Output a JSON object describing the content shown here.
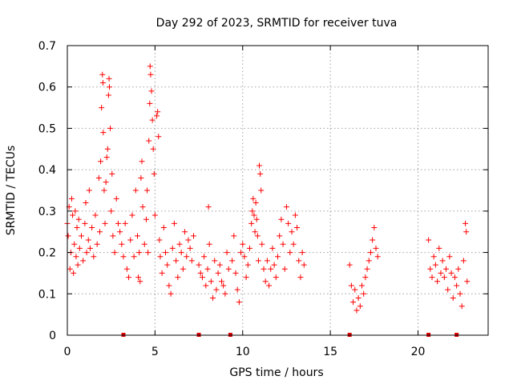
{
  "chart_data": {
    "type": "scatter",
    "title": "Day 292 of 2023, SRMTID for receiver tuva",
    "xlabel": "GPS time / hours",
    "ylabel": "SRMTID / TECUs",
    "xlim": [
      0,
      24
    ],
    "ylim": [
      0,
      0.7
    ],
    "xticks": [
      "0",
      "5",
      "10",
      "15",
      "20"
    ],
    "yticks": [
      "0",
      "0.1",
      "0.2",
      "0.3",
      "0.4",
      "0.5",
      "0.6",
      "0.7"
    ],
    "grid": true,
    "marker": "plus",
    "color": "#ff0000",
    "data_gap_markers_x": [
      3.2,
      7.5,
      9.3,
      16.1,
      20.6,
      22.2
    ],
    "series": [
      {
        "name": "SRMTID",
        "points": [
          [
            0.0,
            0.27
          ],
          [
            0.05,
            0.24
          ],
          [
            0.1,
            0.31
          ],
          [
            0.15,
            0.16
          ],
          [
            0.2,
            0.2
          ],
          [
            0.25,
            0.33
          ],
          [
            0.3,
            0.29
          ],
          [
            0.35,
            0.15
          ],
          [
            0.4,
            0.22
          ],
          [
            0.45,
            0.3
          ],
          [
            0.5,
            0.19
          ],
          [
            0.55,
            0.26
          ],
          [
            0.6,
            0.17
          ],
          [
            0.65,
            0.28
          ],
          [
            0.7,
            0.21
          ],
          [
            0.8,
            0.24
          ],
          [
            0.9,
            0.18
          ],
          [
            1.0,
            0.27
          ],
          [
            1.05,
            0.32
          ],
          [
            1.1,
            0.2
          ],
          [
            1.2,
            0.23
          ],
          [
            1.25,
            0.35
          ],
          [
            1.3,
            0.21
          ],
          [
            1.4,
            0.26
          ],
          [
            1.5,
            0.19
          ],
          [
            1.6,
            0.29
          ],
          [
            1.7,
            0.22
          ],
          [
            1.8,
            0.38
          ],
          [
            1.85,
            0.25
          ],
          [
            1.9,
            0.42
          ],
          [
            1.95,
            0.55
          ],
          [
            2.0,
            0.63
          ],
          [
            2.03,
            0.61
          ],
          [
            2.05,
            0.49
          ],
          [
            2.1,
            0.35
          ],
          [
            2.15,
            0.27
          ],
          [
            2.2,
            0.37
          ],
          [
            2.25,
            0.43
          ],
          [
            2.3,
            0.45
          ],
          [
            2.35,
            0.58
          ],
          [
            2.38,
            0.62
          ],
          [
            2.4,
            0.6
          ],
          [
            2.45,
            0.5
          ],
          [
            2.5,
            0.3
          ],
          [
            2.55,
            0.39
          ],
          [
            2.6,
            0.24
          ],
          [
            2.7,
            0.2
          ],
          [
            2.8,
            0.33
          ],
          [
            2.9,
            0.27
          ],
          [
            3.0,
            0.25
          ],
          [
            3.1,
            0.22
          ],
          [
            3.2,
            0.19
          ],
          [
            3.3,
            0.27
          ],
          [
            3.4,
            0.16
          ],
          [
            3.5,
            0.14
          ],
          [
            3.6,
            0.23
          ],
          [
            3.7,
            0.29
          ],
          [
            3.8,
            0.19
          ],
          [
            3.9,
            0.35
          ],
          [
            4.0,
            0.24
          ],
          [
            4.05,
            0.14
          ],
          [
            4.1,
            0.2
          ],
          [
            4.15,
            0.13
          ],
          [
            4.2,
            0.38
          ],
          [
            4.25,
            0.42
          ],
          [
            4.3,
            0.31
          ],
          [
            4.4,
            0.22
          ],
          [
            4.5,
            0.28
          ],
          [
            4.55,
            0.35
          ],
          [
            4.6,
            0.2
          ],
          [
            4.65,
            0.47
          ],
          [
            4.7,
            0.56
          ],
          [
            4.72,
            0.65
          ],
          [
            4.75,
            0.63
          ],
          [
            4.8,
            0.59
          ],
          [
            4.85,
            0.52
          ],
          [
            4.9,
            0.45
          ],
          [
            4.95,
            0.39
          ],
          [
            5.0,
            0.29
          ],
          [
            5.1,
            0.53
          ],
          [
            5.15,
            0.54
          ],
          [
            5.2,
            0.48
          ],
          [
            5.25,
            0.23
          ],
          [
            5.3,
            0.19
          ],
          [
            5.4,
            0.15
          ],
          [
            5.5,
            0.26
          ],
          [
            5.6,
            0.2
          ],
          [
            5.7,
            0.17
          ],
          [
            5.8,
            0.12
          ],
          [
            5.9,
            0.1
          ],
          [
            6.0,
            0.21
          ],
          [
            6.1,
            0.27
          ],
          [
            6.2,
            0.18
          ],
          [
            6.3,
            0.14
          ],
          [
            6.4,
            0.22
          ],
          [
            6.5,
            0.2
          ],
          [
            6.6,
            0.16
          ],
          [
            6.7,
            0.25
          ],
          [
            6.8,
            0.19
          ],
          [
            6.9,
            0.23
          ],
          [
            7.0,
            0.21
          ],
          [
            7.1,
            0.18
          ],
          [
            7.2,
            0.24
          ],
          [
            7.5,
            0.17
          ],
          [
            7.6,
            0.15
          ],
          [
            7.7,
            0.14
          ],
          [
            7.8,
            0.19
          ],
          [
            7.9,
            0.12
          ],
          [
            8.0,
            0.16
          ],
          [
            8.05,
            0.31
          ],
          [
            8.1,
            0.22
          ],
          [
            8.2,
            0.13
          ],
          [
            8.3,
            0.09
          ],
          [
            8.4,
            0.18
          ],
          [
            8.5,
            0.11
          ],
          [
            8.6,
            0.15
          ],
          [
            8.7,
            0.17
          ],
          [
            8.8,
            0.13
          ],
          [
            8.9,
            0.12
          ],
          [
            9.0,
            0.1
          ],
          [
            9.1,
            0.2
          ],
          [
            9.2,
            0.16
          ],
          [
            9.4,
            0.18
          ],
          [
            9.5,
            0.24
          ],
          [
            9.6,
            0.15
          ],
          [
            9.7,
            0.11
          ],
          [
            9.8,
            0.08
          ],
          [
            9.9,
            0.2
          ],
          [
            10.0,
            0.22
          ],
          [
            10.1,
            0.19
          ],
          [
            10.2,
            0.14
          ],
          [
            10.3,
            0.17
          ],
          [
            10.4,
            0.21
          ],
          [
            10.5,
            0.27
          ],
          [
            10.55,
            0.3
          ],
          [
            10.6,
            0.33
          ],
          [
            10.65,
            0.29
          ],
          [
            10.7,
            0.25
          ],
          [
            10.75,
            0.32
          ],
          [
            10.8,
            0.28
          ],
          [
            10.85,
            0.24
          ],
          [
            10.9,
            0.18
          ],
          [
            10.95,
            0.41
          ],
          [
            11.0,
            0.39
          ],
          [
            11.05,
            0.35
          ],
          [
            11.1,
            0.22
          ],
          [
            11.2,
            0.16
          ],
          [
            11.3,
            0.13
          ],
          [
            11.4,
            0.18
          ],
          [
            11.5,
            0.12
          ],
          [
            11.6,
            0.16
          ],
          [
            11.7,
            0.21
          ],
          [
            11.8,
            0.17
          ],
          [
            11.9,
            0.14
          ],
          [
            12.0,
            0.19
          ],
          [
            12.1,
            0.24
          ],
          [
            12.2,
            0.28
          ],
          [
            12.3,
            0.22
          ],
          [
            12.4,
            0.16
          ],
          [
            12.5,
            0.31
          ],
          [
            12.6,
            0.27
          ],
          [
            12.7,
            0.2
          ],
          [
            12.8,
            0.25
          ],
          [
            12.9,
            0.22
          ],
          [
            13.0,
            0.29
          ],
          [
            13.1,
            0.26
          ],
          [
            13.2,
            0.18
          ],
          [
            13.3,
            0.14
          ],
          [
            13.4,
            0.2
          ],
          [
            13.5,
            0.17
          ],
          [
            16.1,
            0.17
          ],
          [
            16.2,
            0.12
          ],
          [
            16.3,
            0.08
          ],
          [
            16.4,
            0.11
          ],
          [
            16.5,
            0.06
          ],
          [
            16.6,
            0.09
          ],
          [
            16.7,
            0.07
          ],
          [
            16.8,
            0.12
          ],
          [
            16.9,
            0.1
          ],
          [
            17.0,
            0.14
          ],
          [
            17.1,
            0.16
          ],
          [
            17.2,
            0.18
          ],
          [
            17.3,
            0.2
          ],
          [
            17.4,
            0.23
          ],
          [
            17.5,
            0.26
          ],
          [
            17.6,
            0.21
          ],
          [
            17.7,
            0.19
          ],
          [
            20.6,
            0.23
          ],
          [
            20.7,
            0.16
          ],
          [
            20.8,
            0.14
          ],
          [
            20.9,
            0.19
          ],
          [
            21.0,
            0.17
          ],
          [
            21.1,
            0.13
          ],
          [
            21.2,
            0.21
          ],
          [
            21.3,
            0.15
          ],
          [
            21.4,
            0.18
          ],
          [
            21.5,
            0.14
          ],
          [
            21.6,
            0.16
          ],
          [
            21.7,
            0.11
          ],
          [
            21.8,
            0.19
          ],
          [
            21.9,
            0.15
          ],
          [
            22.0,
            0.09
          ],
          [
            22.1,
            0.14
          ],
          [
            22.2,
            0.12
          ],
          [
            22.3,
            0.16
          ],
          [
            22.4,
            0.1
          ],
          [
            22.5,
            0.07
          ],
          [
            22.6,
            0.18
          ],
          [
            22.7,
            0.27
          ],
          [
            22.75,
            0.25
          ],
          [
            22.8,
            0.13
          ]
        ]
      }
    ]
  }
}
